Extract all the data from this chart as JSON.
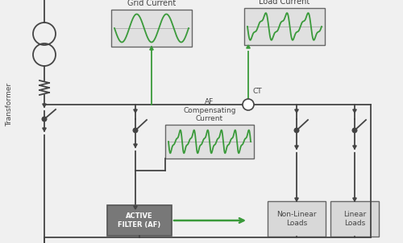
{
  "bg_color": "#f0f0f0",
  "line_color": "#444444",
  "green_color": "#3a9a3a",
  "box_fill_wave": "#e0e0e0",
  "box_fill_af": "#787878",
  "box_fill_load": "#d8d8d8",
  "box_stroke": "#666666",
  "labels": {
    "grid_current": "Grid Current",
    "load_current": "Load Current",
    "af_compensating": "AF\nCompensating\nCurrent",
    "active_filter": "ACTIVE\nFILTER (AF)",
    "non_linear": "Non-Linear\nLoads",
    "linear": "Linear\nLoads",
    "transformer": "Transformer",
    "ct": "CT"
  }
}
